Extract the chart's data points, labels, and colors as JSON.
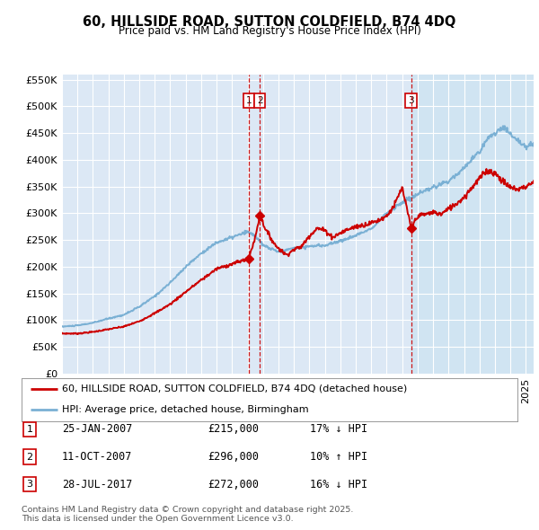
{
  "title": "60, HILLSIDE ROAD, SUTTON COLDFIELD, B74 4DQ",
  "subtitle": "Price paid vs. HM Land Registry's House Price Index (HPI)",
  "ylim": [
    0,
    560000
  ],
  "yticks": [
    0,
    50000,
    100000,
    150000,
    200000,
    250000,
    300000,
    350000,
    400000,
    450000,
    500000,
    550000
  ],
  "bg_color": "#dce8f5",
  "highlight_color": "#ccdcee",
  "red_color": "#cc0000",
  "blue_color": "#7ab0d4",
  "sale_markers": [
    {
      "num": 1,
      "date": "25-JAN-2007",
      "price": 215000,
      "pct": "17%",
      "dir": "↓",
      "x_year": 2007.07
    },
    {
      "num": 2,
      "date": "11-OCT-2007",
      "price": 296000,
      "pct": "10%",
      "dir": "↑",
      "x_year": 2007.79
    },
    {
      "num": 3,
      "date": "28-JUL-2017",
      "price": 272000,
      "pct": "16%",
      "dir": "↓",
      "x_year": 2017.58
    }
  ],
  "legend_red_label": "60, HILLSIDE ROAD, SUTTON COLDFIELD, B74 4DQ (detached house)",
  "legend_blue_label": "HPI: Average price, detached house, Birmingham",
  "footer": "Contains HM Land Registry data © Crown copyright and database right 2025.\nThis data is licensed under the Open Government Licence v3.0.",
  "xmin": 1995.0,
  "xmax": 2025.5,
  "hpi_key_years": [
    1995,
    1996,
    1997,
    1998,
    1999,
    2000,
    2001,
    2002,
    2003,
    2004,
    2005,
    2006,
    2007,
    2007.5,
    2008,
    2009,
    2010,
    2011,
    2012,
    2013,
    2014,
    2015,
    2016,
    2017,
    2018,
    2019,
    2020,
    2021,
    2022,
    2022.5,
    2023,
    2023.5,
    2024,
    2024.5,
    2025,
    2025.5
  ],
  "hpi_key_vals": [
    88000,
    90000,
    95000,
    103000,
    110000,
    125000,
    145000,
    170000,
    200000,
    225000,
    245000,
    255000,
    265000,
    258000,
    240000,
    228000,
    235000,
    238000,
    240000,
    248000,
    258000,
    272000,
    300000,
    320000,
    335000,
    348000,
    360000,
    385000,
    415000,
    440000,
    450000,
    460000,
    450000,
    435000,
    425000,
    430000
  ],
  "red_key_years": [
    1995.0,
    1996.0,
    1997.0,
    1998.0,
    1999.0,
    2000.0,
    2001.0,
    2002.0,
    2003.0,
    2004.0,
    2005.0,
    2006.0,
    2006.5,
    2007.07,
    2007.5,
    2007.79,
    2008.2,
    2008.8,
    2009.5,
    2010.0,
    2010.5,
    2011.0,
    2011.5,
    2012.0,
    2012.5,
    2013.0,
    2013.5,
    2014.0,
    2014.5,
    2015.0,
    2015.5,
    2016.0,
    2016.5,
    2017.0,
    2017.58,
    2018.0,
    2018.5,
    2019.0,
    2019.5,
    2020.0,
    2020.5,
    2021.0,
    2021.5,
    2022.0,
    2022.5,
    2023.0,
    2023.5,
    2024.0,
    2024.5,
    2025.0,
    2025.5
  ],
  "red_key_vals": [
    75000,
    75000,
    78000,
    83000,
    88000,
    98000,
    113000,
    130000,
    153000,
    175000,
    196000,
    205000,
    210000,
    215000,
    255000,
    296000,
    268000,
    240000,
    222000,
    232000,
    238000,
    258000,
    272000,
    268000,
    255000,
    263000,
    270000,
    275000,
    278000,
    282000,
    287000,
    295000,
    315000,
    348000,
    272000,
    295000,
    298000,
    302000,
    298000,
    308000,
    318000,
    330000,
    348000,
    365000,
    380000,
    375000,
    360000,
    348000,
    345000,
    350000,
    358000
  ]
}
